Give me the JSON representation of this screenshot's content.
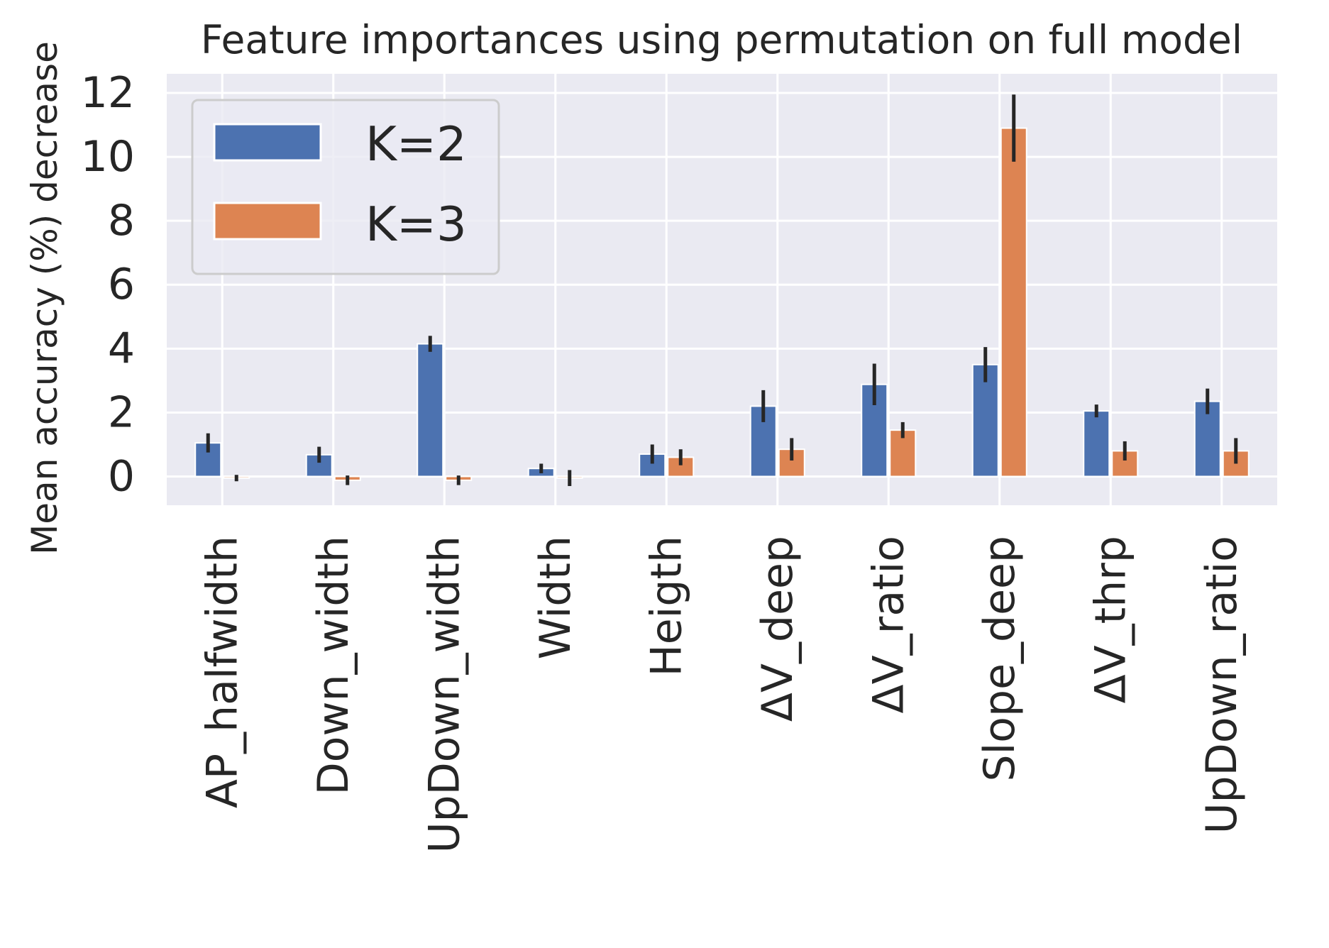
{
  "chart_data": {
    "type": "bar",
    "title": "Feature importances using permutation on full model",
    "ylabel": "Mean accuracy (%) decrease",
    "xlabel": "",
    "ylim": [
      -0.9,
      12.6
    ],
    "yticks": [
      0,
      2,
      4,
      6,
      8,
      10,
      12
    ],
    "grid": true,
    "legend_position": "top-left",
    "categories": [
      "AP_halfwidth",
      "Down_width",
      "UpDown_width",
      "Width",
      "Heigth",
      "ΔV_deep",
      "ΔV_ratio",
      "Slope_deep",
      "ΔV_thrp",
      "UpDown_ratio"
    ],
    "series": [
      {
        "name": "K=2",
        "color": "#4c72b0",
        "values": [
          1.05,
          0.68,
          4.15,
          0.25,
          0.7,
          2.2,
          2.88,
          3.5,
          2.05,
          2.35
        ],
        "errors": [
          0.3,
          0.25,
          0.25,
          0.15,
          0.3,
          0.5,
          0.65,
          0.55,
          0.2,
          0.4
        ]
      },
      {
        "name": "K=3",
        "color": "#dd8452",
        "values": [
          -0.05,
          -0.12,
          -0.12,
          -0.05,
          0.6,
          0.85,
          1.45,
          10.9,
          0.8,
          0.8
        ],
        "errors": [
          0.1,
          0.15,
          0.15,
          0.25,
          0.25,
          0.35,
          0.25,
          1.05,
          0.3,
          0.4
        ]
      }
    ]
  },
  "colors": {
    "plot_background": "#eaeaf2",
    "grid": "#ffffff",
    "error_bar": "#262626",
    "text": "#262626"
  }
}
